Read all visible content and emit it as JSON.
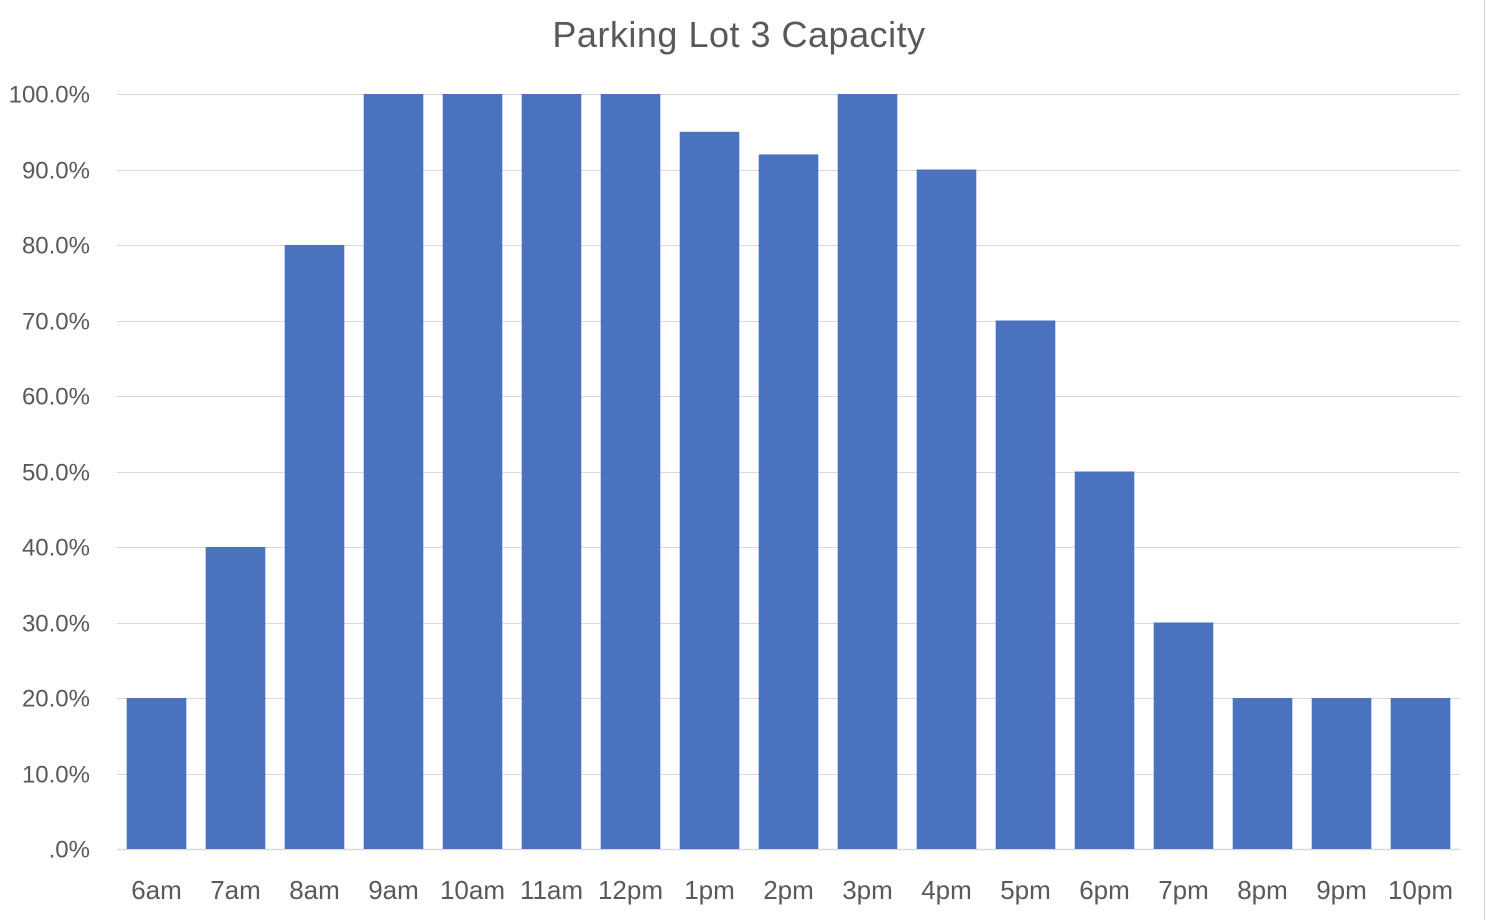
{
  "chart_data": {
    "type": "bar",
    "title": "Parking Lot 3 Capacity",
    "xlabel": "",
    "ylabel": "",
    "categories": [
      "6am",
      "7am",
      "8am",
      "9am",
      "10am",
      "11am",
      "12pm",
      "1pm",
      "2pm",
      "3pm",
      "4pm",
      "5pm",
      "6pm",
      "7pm",
      "8pm",
      "9pm",
      "10pm"
    ],
    "values": [
      20,
      40,
      80,
      100,
      100,
      100,
      100,
      95,
      92,
      100,
      90,
      70,
      50,
      30,
      20,
      20,
      20
    ],
    "ylim": [
      0,
      100
    ],
    "yticks": [
      0,
      10,
      20,
      30,
      40,
      50,
      60,
      70,
      80,
      90,
      100
    ],
    "ytick_labels": [
      ".0%",
      "10.0%",
      "20.0%",
      "30.0%",
      "40.0%",
      "50.0%",
      "60.0%",
      "70.0%",
      "80.0%",
      "90.0%",
      "100.0%"
    ],
    "grid": true,
    "legend": "none",
    "bar_color": "#4a72be",
    "grid_color": "#d9d9d9",
    "text_color": "#595959"
  }
}
